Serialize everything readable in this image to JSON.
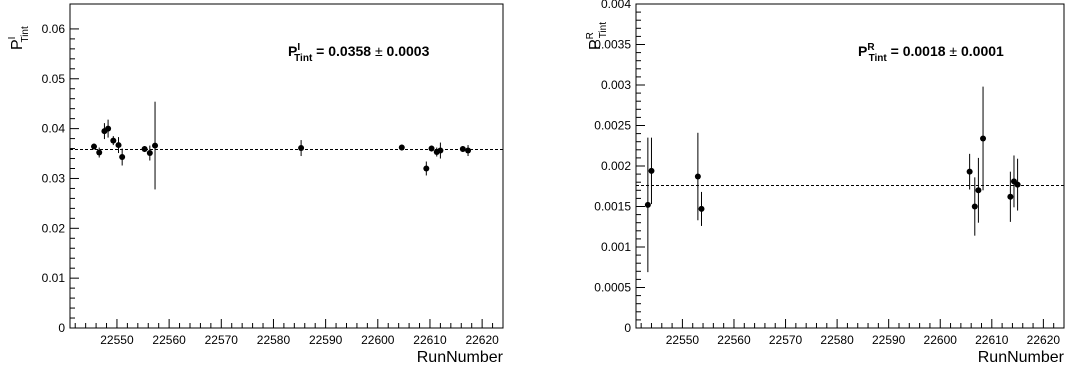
{
  "chart_data": [
    {
      "type": "scatter",
      "title": "",
      "xlabel": "RunNumber",
      "ylabel": "P",
      "ylabel_sup": "I",
      "ylabel_sub": "Tint",
      "xlim": [
        22541,
        22624
      ],
      "ylim": [
        0,
        0.065
      ],
      "xticks": [
        22550,
        22560,
        22570,
        22580,
        22590,
        22600,
        22610,
        22620
      ],
      "yticks": [
        0,
        0.01,
        0.02,
        0.03,
        0.04,
        0.05,
        0.06
      ],
      "ytick_labels": [
        "0",
        "0.01",
        "0.02",
        "0.03",
        "0.04",
        "0.05",
        "0.06"
      ],
      "fit_line": 0.0358,
      "annotation": {
        "prefix": "P",
        "sup": "I",
        "sub": "Tint",
        "text": " = 0.0358 ",
        "pm": "±",
        "err": " 0.0003"
      },
      "points": [
        {
          "x": 22545.6,
          "y": 0.0364,
          "err": 0.0006
        },
        {
          "x": 22546.6,
          "y": 0.0352,
          "err": 0.001
        },
        {
          "x": 22547.6,
          "y": 0.0395,
          "err": 0.0016
        },
        {
          "x": 22548.3,
          "y": 0.04,
          "err": 0.0018
        },
        {
          "x": 22549.3,
          "y": 0.0376,
          "err": 0.0009
        },
        {
          "x": 22550.3,
          "y": 0.0367,
          "err": 0.0016
        },
        {
          "x": 22551.0,
          "y": 0.0343,
          "err": 0.0017
        },
        {
          "x": 22555.3,
          "y": 0.0359,
          "err": 0.0006
        },
        {
          "x": 22556.3,
          "y": 0.0351,
          "err": 0.0015
        },
        {
          "x": 22557.3,
          "y": 0.0366,
          "err": 0.0088
        },
        {
          "x": 22585.3,
          "y": 0.0361,
          "err": 0.0016
        },
        {
          "x": 22604.6,
          "y": 0.0362,
          "err": 0.0006
        },
        {
          "x": 22609.3,
          "y": 0.032,
          "err": 0.0014
        },
        {
          "x": 22610.3,
          "y": 0.036,
          "err": 0.0006
        },
        {
          "x": 22611.3,
          "y": 0.0353,
          "err": 0.0009
        },
        {
          "x": 22612.0,
          "y": 0.0356,
          "err": 0.0016
        },
        {
          "x": 22616.3,
          "y": 0.0359,
          "err": 0.0006
        },
        {
          "x": 22617.3,
          "y": 0.0356,
          "err": 0.0011
        }
      ]
    },
    {
      "type": "scatter",
      "title": "",
      "xlabel": "RunNumber",
      "ylabel": "P",
      "ylabel_sup": "R",
      "ylabel_sub": "Tint",
      "xlim": [
        22541,
        22624
      ],
      "ylim": [
        0,
        0.004
      ],
      "xticks": [
        22550,
        22560,
        22570,
        22580,
        22590,
        22600,
        22610,
        22620
      ],
      "yticks": [
        0,
        0.0005,
        0.001,
        0.0015,
        0.002,
        0.0025,
        0.003,
        0.0035,
        0.004
      ],
      "ytick_labels": [
        "0",
        "0.0005",
        "0.001",
        "0.0015",
        "0.002",
        "0.0025",
        "0.003",
        "0.0035",
        "0.004"
      ],
      "fit_line": 0.00176,
      "annotation": {
        "prefix": "P",
        "sup": "R",
        "sub": "Tint",
        "text": " = 0.0018 ",
        "pm": "±",
        "err": " 0.0001"
      },
      "points": [
        {
          "x": 22543.3,
          "y": 0.00152,
          "err": 0.00083
        },
        {
          "x": 22544.0,
          "y": 0.00194,
          "err": 0.00041
        },
        {
          "x": 22553.0,
          "y": 0.00187,
          "err": 0.00054
        },
        {
          "x": 22553.7,
          "y": 0.00147,
          "err": 0.00021
        },
        {
          "x": 22605.7,
          "y": 0.00193,
          "err": 0.00022
        },
        {
          "x": 22606.7,
          "y": 0.0015,
          "err": 0.00036
        },
        {
          "x": 22607.4,
          "y": 0.0017,
          "err": 0.0004
        },
        {
          "x": 22608.3,
          "y": 0.00234,
          "err": 0.00064
        },
        {
          "x": 22613.6,
          "y": 0.00162,
          "err": 0.00031
        },
        {
          "x": 22614.3,
          "y": 0.00181,
          "err": 0.00032
        },
        {
          "x": 22615.0,
          "y": 0.00177,
          "err": 0.00032
        }
      ]
    }
  ]
}
